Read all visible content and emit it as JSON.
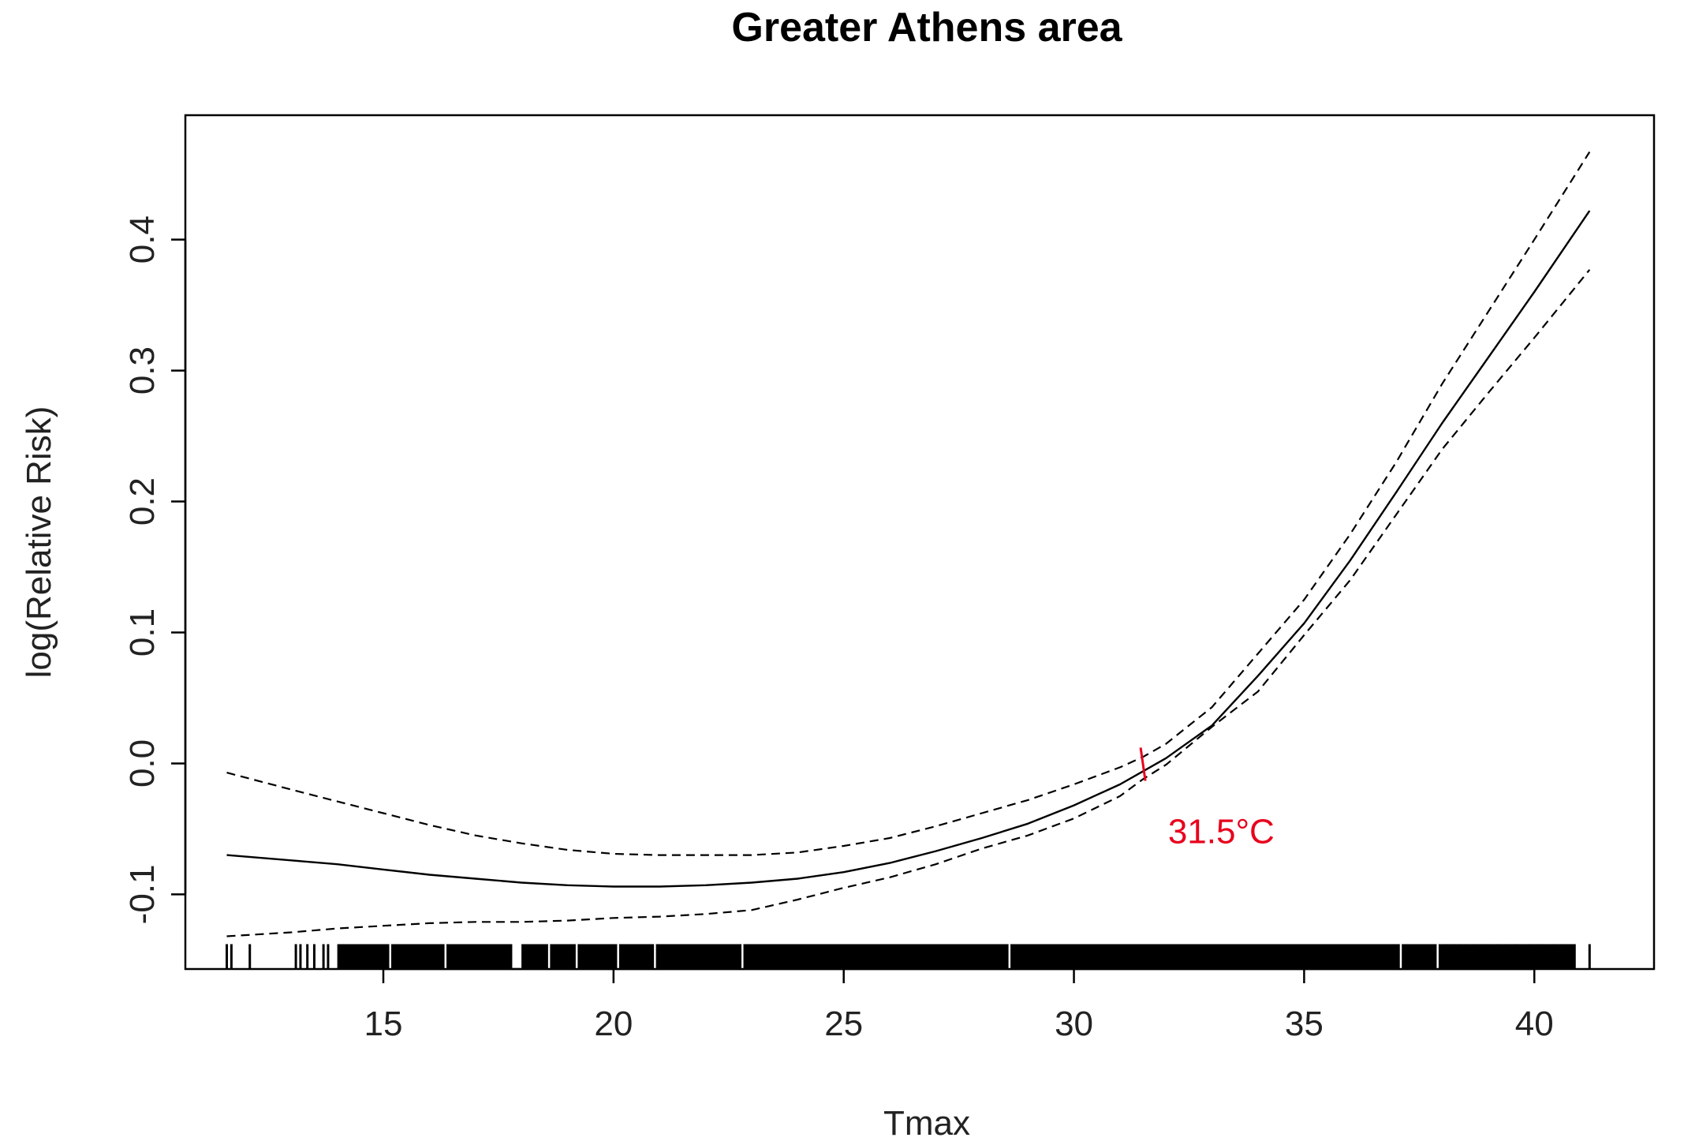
{
  "chart_data": {
    "type": "line",
    "title": "Greater Athens area",
    "xlabel": "Tmax",
    "ylabel": "log(Relative Risk)",
    "xlim": [
      10.7,
      42.6
    ],
    "ylim": [
      -0.157,
      0.495
    ],
    "xticks": [
      15,
      20,
      25,
      30,
      35,
      40
    ],
    "yticks": [
      -0.1,
      0.0,
      0.1,
      0.2,
      0.3,
      0.4
    ],
    "xtick_labels": [
      "15",
      "20",
      "25",
      "30",
      "35",
      "40"
    ],
    "ytick_labels": [
      "-0.1",
      "0.0",
      "0.1",
      "0.2",
      "0.3",
      "0.4"
    ],
    "x": [
      11.6,
      13,
      14,
      15,
      16,
      17,
      18,
      19,
      20,
      21,
      22,
      23,
      24,
      25,
      26,
      27,
      28,
      29,
      30,
      31,
      31.5,
      32,
      33,
      34,
      35,
      36,
      37,
      38,
      39,
      40,
      41.2
    ],
    "series": [
      {
        "values": [
          -0.07,
          -0.074,
          -0.077,
          -0.081,
          -0.085,
          -0.088,
          -0.091,
          -0.093,
          -0.094,
          -0.094,
          -0.093,
          -0.091,
          -0.088,
          -0.083,
          -0.076,
          -0.067,
          -0.057,
          -0.046,
          -0.032,
          -0.016,
          -0.006,
          0.004,
          0.029,
          0.067,
          0.107,
          0.155,
          0.207,
          0.26,
          0.31,
          0.36,
          0.422
        ],
        "style": "solid"
      },
      {
        "values": [
          -0.007,
          -0.02,
          -0.029,
          -0.038,
          -0.047,
          -0.055,
          -0.061,
          -0.066,
          -0.069,
          -0.07,
          -0.07,
          -0.07,
          -0.068,
          -0.063,
          -0.057,
          -0.048,
          -0.038,
          -0.028,
          -0.016,
          -0.003,
          0.005,
          0.015,
          0.043,
          0.084,
          0.125,
          0.175,
          0.23,
          0.29,
          0.345,
          0.4,
          0.467
        ],
        "style": "dashed"
      },
      {
        "values": [
          -0.132,
          -0.129,
          -0.126,
          -0.124,
          -0.122,
          -0.121,
          -0.121,
          -0.12,
          -0.118,
          -0.117,
          -0.115,
          -0.112,
          -0.104,
          -0.095,
          -0.087,
          -0.077,
          -0.065,
          -0.055,
          -0.042,
          -0.025,
          -0.012,
          -0.001,
          0.028,
          0.055,
          0.098,
          0.14,
          0.19,
          0.24,
          0.283,
          0.325,
          0.377
        ],
        "style": "dashed"
      }
    ],
    "threshold": {
      "x": 31.5,
      "y": 0.0,
      "label": "31.5°C",
      "color": "#e8001c"
    },
    "rug": {
      "dense_ranges": [
        [
          14.0,
          17.8
        ],
        [
          18.0,
          40.9
        ]
      ],
      "sparse_ticks": [
        11.6,
        11.7,
        12.1,
        13.1,
        13.2,
        13.35,
        13.5,
        13.7,
        13.8,
        38.1,
        38.25,
        38.4,
        38.5,
        38.7,
        38.9,
        39.0,
        39.2,
        39.4,
        39.6,
        39.9,
        40.15,
        40.4,
        40.6,
        41.2
      ],
      "gaps": [
        15.15,
        16.35,
        18.6,
        19.2,
        20.1,
        20.9,
        22.8,
        28.6,
        37.1,
        37.9
      ]
    },
    "grid": false,
    "legend": "none"
  }
}
